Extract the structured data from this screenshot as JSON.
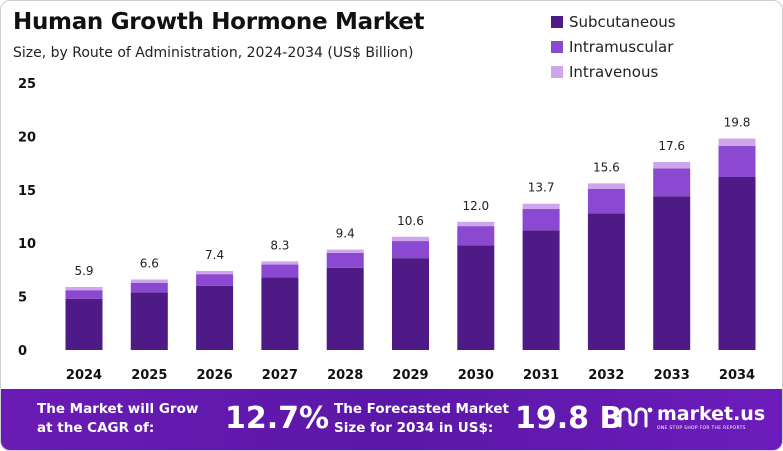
{
  "header": {
    "title": "Human Growth Hormone Market",
    "subtitle": "Size, by Route of Administration, 2024-2034 (US$ Billion)"
  },
  "chart_data": {
    "type": "bar",
    "stacked": true,
    "categories": [
      "2024",
      "2025",
      "2026",
      "2027",
      "2028",
      "2029",
      "2030",
      "2031",
      "2032",
      "2033",
      "2034"
    ],
    "totals": [
      5.9,
      6.6,
      7.4,
      8.3,
      9.4,
      10.6,
      12.0,
      13.7,
      15.6,
      17.6,
      19.8
    ],
    "total_labels": [
      "5.9",
      "6.6",
      "7.4",
      "8.3",
      "9.4",
      "10.6",
      "12.0",
      "13.7",
      "15.6",
      "17.6",
      "19.8"
    ],
    "series": [
      {
        "name": "Subcutaneous",
        "color": "#4e1a86",
        "values": [
          4.8,
          5.4,
          6.0,
          6.8,
          7.7,
          8.6,
          9.8,
          11.2,
          12.8,
          14.4,
          16.2
        ]
      },
      {
        "name": "Intramuscular",
        "color": "#8b48d0",
        "values": [
          0.8,
          0.9,
          1.1,
          1.2,
          1.4,
          1.6,
          1.8,
          2.0,
          2.3,
          2.6,
          2.9
        ]
      },
      {
        "name": "Intravenous",
        "color": "#cfa5ec",
        "values": [
          0.3,
          0.3,
          0.3,
          0.3,
          0.3,
          0.4,
          0.4,
          0.5,
          0.5,
          0.6,
          0.7
        ]
      }
    ],
    "ylim": [
      0,
      25
    ],
    "yticks": [
      0,
      5,
      10,
      15,
      20,
      25
    ],
    "grid": false,
    "legend_position": "top-right"
  },
  "banner": {
    "cagr_text_line1": "The Market will Grow",
    "cagr_text_line2": "at the CAGR of:",
    "cagr_value": "12.7%",
    "forecast_text_line1": "The Forecasted Market",
    "forecast_text_line2": "Size for 2034 in US$:",
    "forecast_value": "19.8 B",
    "brand_name": "market.us",
    "brand_tagline": "ONE STOP SHOP FOR THE REPORTS"
  },
  "colors": {
    "banner": "#5b17a8",
    "subcutaneous": "#4e1a86",
    "intramuscular": "#8b48d0",
    "intravenous": "#cfa5ec"
  }
}
